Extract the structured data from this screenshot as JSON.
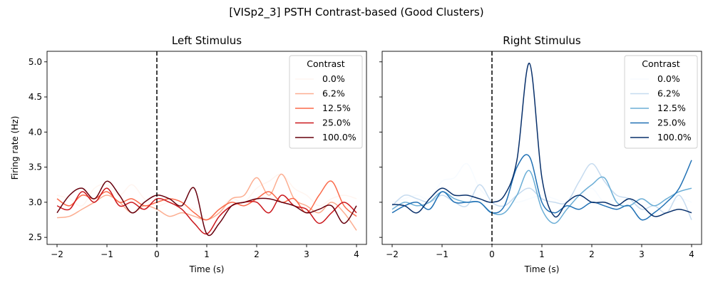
{
  "suptitle": "[VISp2_3] PSTH Contrast-based (Good Clusters)",
  "chart_data": [
    {
      "type": "line",
      "title": "Left Stimulus",
      "xlabel": "Time (s)",
      "ylabel": "Firing rate (Hz)",
      "xlim": [
        -2.2,
        4.2
      ],
      "ylim": [
        2.4,
        5.15
      ],
      "xticks": [
        -2,
        -1,
        0,
        1,
        2,
        3,
        4
      ],
      "xtick_labels": [
        "−2",
        "−1",
        "0",
        "1",
        "2",
        "3",
        "4"
      ],
      "yticks": [
        2.5,
        3.0,
        3.5,
        4.0,
        4.5,
        5.0
      ],
      "ytick_labels": [
        "2.5",
        "3.0",
        "3.5",
        "4.0",
        "4.5",
        "5.0"
      ],
      "vline": {
        "x": 0,
        "style": "dashed",
        "color": "#000000"
      },
      "legend": {
        "title": "Contrast",
        "position": "top-right"
      },
      "x": [
        -2.0,
        -1.75,
        -1.5,
        -1.25,
        -1.0,
        -0.75,
        -0.5,
        -0.25,
        0.0,
        0.25,
        0.5,
        0.75,
        1.0,
        1.25,
        1.5,
        1.75,
        2.0,
        2.25,
        2.5,
        2.75,
        3.0,
        3.25,
        3.5,
        3.75,
        4.0
      ],
      "series": [
        {
          "name": "0.0%",
          "color": "#fff5f0",
          "values": [
            3.1,
            3.05,
            2.95,
            3.2,
            3.25,
            3.1,
            3.25,
            3.05,
            2.95,
            3.0,
            2.95,
            2.9,
            2.75,
            2.9,
            3.05,
            3.0,
            3.2,
            3.3,
            3.4,
            3.2,
            3.1,
            2.95,
            3.05,
            3.1,
            3.05
          ]
        },
        {
          "name": "6.2%",
          "color": "#fcae91",
          "values": [
            2.78,
            2.8,
            2.9,
            3.0,
            3.1,
            3.0,
            2.85,
            2.95,
            2.9,
            2.8,
            2.85,
            2.8,
            2.75,
            2.85,
            3.05,
            3.1,
            3.35,
            3.1,
            3.4,
            3.05,
            2.95,
            2.85,
            3.0,
            2.85,
            2.6
          ]
        },
        {
          "name": "12.5%",
          "color": "#fb6a4a",
          "values": [
            3.05,
            2.95,
            3.1,
            3.05,
            3.15,
            3.0,
            3.05,
            2.95,
            3.0,
            3.05,
            3.0,
            2.85,
            2.75,
            2.9,
            3.0,
            2.95,
            3.05,
            3.15,
            3.0,
            3.05,
            2.85,
            3.1,
            3.3,
            2.95,
            2.8
          ]
        },
        {
          "name": "25.0%",
          "color": "#cb181d",
          "values": [
            2.95,
            2.9,
            3.15,
            3.0,
            3.2,
            2.95,
            3.0,
            2.9,
            3.05,
            3.0,
            2.9,
            2.7,
            2.55,
            2.8,
            2.95,
            3.0,
            3.0,
            2.85,
            3.1,
            2.95,
            2.9,
            2.7,
            2.85,
            3.0,
            2.85
          ]
        },
        {
          "name": "100.0%",
          "color": "#67000d",
          "values": [
            2.85,
            3.1,
            3.2,
            3.05,
            3.3,
            3.1,
            2.85,
            3.0,
            3.1,
            3.05,
            2.95,
            3.2,
            2.55,
            2.7,
            2.95,
            3.0,
            3.05,
            3.05,
            3.0,
            2.95,
            2.85,
            2.9,
            2.95,
            2.7,
            2.95
          ]
        }
      ]
    },
    {
      "type": "line",
      "title": "Right Stimulus",
      "xlabel": "Time (s)",
      "ylabel": "",
      "xlim": [
        -2.2,
        4.2
      ],
      "ylim": [
        2.4,
        5.15
      ],
      "xticks": [
        -2,
        -1,
        0,
        1,
        2,
        3,
        4
      ],
      "xtick_labels": [
        "−2",
        "−1",
        "0",
        "1",
        "2",
        "3",
        "4"
      ],
      "yticks": [
        2.5,
        3.0,
        3.5,
        4.0,
        4.5,
        5.0
      ],
      "ytick_labels": [
        "",
        "",
        "",
        "",
        "",
        ""
      ],
      "vline": {
        "x": 0,
        "style": "dashed",
        "color": "#000000"
      },
      "legend": {
        "title": "Contrast",
        "position": "top-right"
      },
      "x": [
        -2.0,
        -1.75,
        -1.5,
        -1.25,
        -1.0,
        -0.75,
        -0.5,
        -0.25,
        0.0,
        0.25,
        0.5,
        0.75,
        1.0,
        1.25,
        1.5,
        1.75,
        2.0,
        2.25,
        2.5,
        2.75,
        3.0,
        3.25,
        3.5,
        3.75,
        4.0
      ],
      "series": [
        {
          "name": "0.0%",
          "color": "#f7fbff",
          "values": [
            3.0,
            3.05,
            3.1,
            3.05,
            3.3,
            3.35,
            3.55,
            3.2,
            3.05,
            3.05,
            3.0,
            3.05,
            3.1,
            3.05,
            3.0,
            3.1,
            3.2,
            3.0,
            3.05,
            3.0,
            2.95,
            3.0,
            2.95,
            3.05,
            3.0
          ]
        },
        {
          "name": "6.2%",
          "color": "#c6dbef",
          "values": [
            2.95,
            3.1,
            3.05,
            3.0,
            3.1,
            3.0,
            2.95,
            3.25,
            3.0,
            2.95,
            3.1,
            3.2,
            3.05,
            3.0,
            3.0,
            3.3,
            3.55,
            3.3,
            3.1,
            3.05,
            2.9,
            2.95,
            2.85,
            3.1,
            2.75
          ]
        },
        {
          "name": "12.5%",
          "color": "#6baed6",
          "values": [
            2.9,
            3.0,
            2.95,
            3.0,
            3.15,
            3.05,
            3.0,
            3.0,
            2.85,
            2.85,
            3.1,
            3.45,
            2.9,
            2.7,
            2.9,
            3.1,
            3.25,
            3.35,
            3.0,
            2.95,
            3.05,
            2.95,
            3.05,
            3.15,
            3.2
          ]
        },
        {
          "name": "25.0%",
          "color": "#2171b5",
          "values": [
            2.85,
            2.95,
            3.0,
            2.9,
            3.15,
            3.0,
            3.0,
            3.0,
            2.85,
            2.95,
            3.5,
            3.65,
            3.0,
            2.85,
            2.95,
            2.9,
            3.0,
            2.95,
            2.9,
            2.95,
            2.75,
            2.85,
            3.0,
            3.2,
            3.6
          ]
        },
        {
          "name": "100.0%",
          "color": "#08306b",
          "values": [
            2.97,
            2.95,
            2.85,
            3.05,
            3.2,
            3.1,
            3.1,
            3.05,
            3.0,
            3.1,
            3.6,
            4.98,
            3.35,
            2.8,
            3.0,
            3.1,
            3.0,
            3.0,
            2.95,
            3.05,
            2.95,
            2.8,
            2.85,
            2.9,
            2.85
          ]
        }
      ]
    }
  ]
}
